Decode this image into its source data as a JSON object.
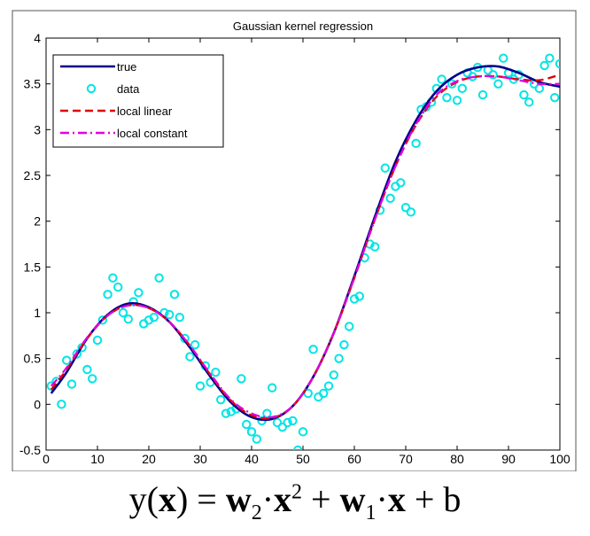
{
  "chart_data": {
    "type": "line",
    "title": "Gaussian kernel regression",
    "xlim": [
      0,
      100
    ],
    "ylim": [
      -0.5,
      4
    ],
    "xticks": [
      "0",
      "10",
      "20",
      "30",
      "40",
      "50",
      "60",
      "70",
      "80",
      "90",
      "100"
    ],
    "yticks": [
      "-0.5",
      "0",
      "0.5",
      "1",
      "1.5",
      "2",
      "2.5",
      "3",
      "3.5",
      "4"
    ],
    "grid": false,
    "legend_position": "top-left",
    "legend": [
      {
        "label": "true",
        "color": "#00008b",
        "style": "solid"
      },
      {
        "label": "data",
        "color": "#00e5e5",
        "style": "circle"
      },
      {
        "label": "local linear",
        "color": "#e00000",
        "style": "dashed"
      },
      {
        "label": "local constant",
        "color": "#e000e0",
        "style": "dashdot"
      }
    ],
    "series": [
      {
        "name": "true",
        "x": [
          1,
          4,
          8,
          12,
          16,
          20,
          24,
          28,
          32,
          36,
          40,
          44,
          48,
          52,
          56,
          60,
          64,
          68,
          72,
          76,
          80,
          84,
          88,
          92,
          96,
          100
        ],
        "y": [
          0.12,
          0.35,
          0.72,
          0.98,
          1.1,
          1.06,
          0.9,
          0.62,
          0.3,
          0.02,
          -0.14,
          -0.16,
          -0.02,
          0.3,
          0.78,
          1.4,
          2.05,
          2.65,
          3.1,
          3.42,
          3.6,
          3.68,
          3.69,
          3.62,
          3.52,
          3.47
        ]
      },
      {
        "name": "local linear",
        "x": [
          1,
          4,
          8,
          12,
          16,
          20,
          24,
          28,
          32,
          36,
          40,
          44,
          48,
          52,
          56,
          60,
          64,
          68,
          72,
          76,
          80,
          84,
          88,
          92,
          96,
          100
        ],
        "y": [
          0.16,
          0.38,
          0.72,
          0.97,
          1.08,
          1.05,
          0.9,
          0.64,
          0.32,
          0.04,
          -0.12,
          -0.15,
          -0.02,
          0.3,
          0.78,
          1.38,
          2.02,
          2.6,
          3.05,
          3.36,
          3.52,
          3.58,
          3.58,
          3.55,
          3.54,
          3.6
        ]
      },
      {
        "name": "local constant",
        "x": [
          1,
          4,
          8,
          12,
          16,
          20,
          24,
          28,
          32,
          36,
          40,
          44,
          48,
          52,
          56,
          60,
          64,
          68,
          72,
          76,
          80,
          84,
          88,
          92,
          96,
          100
        ],
        "y": [
          0.2,
          0.4,
          0.73,
          0.97,
          1.08,
          1.05,
          0.9,
          0.64,
          0.33,
          0.05,
          -0.1,
          -0.14,
          -0.02,
          0.3,
          0.78,
          1.38,
          2.02,
          2.6,
          3.06,
          3.38,
          3.53,
          3.58,
          3.58,
          3.54,
          3.5,
          3.5
        ]
      },
      {
        "name": "data",
        "x": [
          1,
          2,
          3,
          4,
          5,
          6,
          7,
          8,
          9,
          10,
          11,
          12,
          13,
          14,
          15,
          16,
          17,
          18,
          19,
          20,
          21,
          22,
          23,
          24,
          25,
          26,
          27,
          28,
          29,
          30,
          31,
          32,
          33,
          34,
          35,
          36,
          37,
          38,
          39,
          40,
          41,
          42,
          43,
          44,
          45,
          46,
          47,
          48,
          49,
          50,
          51,
          52,
          53,
          54,
          55,
          56,
          57,
          58,
          59,
          60,
          61,
          62,
          63,
          64,
          65,
          66,
          67,
          68,
          69,
          70,
          71,
          72,
          73,
          74,
          75,
          76,
          77,
          78,
          79,
          80,
          81,
          82,
          83,
          84,
          85,
          86,
          87,
          88,
          89,
          90,
          91,
          92,
          93,
          94,
          95,
          96,
          97,
          98,
          99,
          100
        ],
        "y": [
          0.2,
          0.25,
          0.0,
          0.48,
          0.22,
          0.55,
          0.62,
          0.38,
          0.28,
          0.7,
          0.92,
          1.2,
          1.38,
          1.28,
          1.0,
          0.93,
          1.12,
          1.22,
          0.88,
          0.92,
          0.95,
          1.38,
          1.0,
          0.98,
          1.2,
          0.95,
          0.72,
          0.52,
          0.65,
          0.2,
          0.42,
          0.24,
          0.35,
          0.05,
          -0.1,
          -0.08,
          -0.05,
          0.28,
          -0.22,
          -0.3,
          -0.38,
          -0.18,
          -0.1,
          0.18,
          -0.2,
          -0.25,
          -0.2,
          -0.18,
          -0.5,
          -0.3,
          0.12,
          0.6,
          0.08,
          0.12,
          0.2,
          0.32,
          0.5,
          0.65,
          0.85,
          1.15,
          1.18,
          1.6,
          1.75,
          1.72,
          2.12,
          2.58,
          2.25,
          2.38,
          2.42,
          2.15,
          2.1,
          2.85,
          3.22,
          3.25,
          3.3,
          3.45,
          3.55,
          3.35,
          3.5,
          3.32,
          3.45,
          3.62,
          3.58,
          3.68,
          3.38,
          3.65,
          3.6,
          3.5,
          3.78,
          3.62,
          3.55,
          3.6,
          3.38,
          3.3,
          3.5,
          3.45,
          3.7,
          3.78,
          3.35,
          3.72
        ]
      }
    ]
  },
  "formula": {
    "lhs": "y(",
    "x1": "x",
    "rparen_eq": ") = ",
    "w2": "w",
    "w2_sub": "2",
    "dot1": "·",
    "x2": "x",
    "x2_sup": "2",
    "plus1": " + ",
    "w1": "w",
    "w1_sub": "1",
    "dot2": "·",
    "x3": "x",
    "plus2": " + b"
  }
}
